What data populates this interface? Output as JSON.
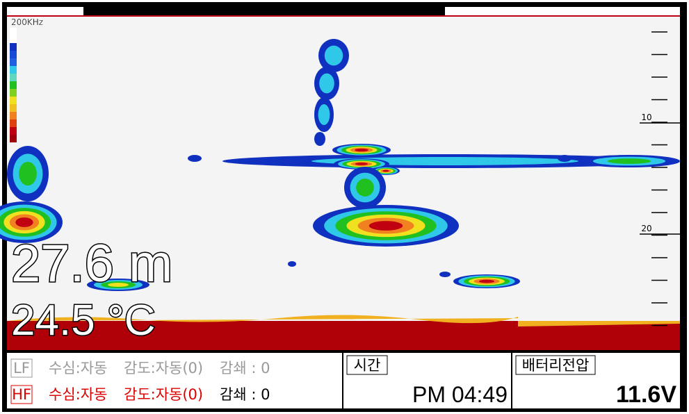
{
  "echogram": {
    "frequency": "200KHz",
    "depth_labels": [
      "10",
      "20"
    ],
    "depth": "27.6 m",
    "temperature": "24.5 °C"
  },
  "status": {
    "lf": {
      "tag": "LF",
      "depth_mode": "수심:자동",
      "gain": "감도:자동(0)",
      "attenuation": "감쇄 : 0"
    },
    "hf": {
      "tag": "HF",
      "depth_mode": "수심:자동",
      "gain": "감도:자동(0)",
      "attenuation": "감쇄 : 0"
    },
    "time_label": "시간",
    "time": "PM 04:49",
    "battery_label": "배터리전압",
    "battery": "11.6V"
  }
}
